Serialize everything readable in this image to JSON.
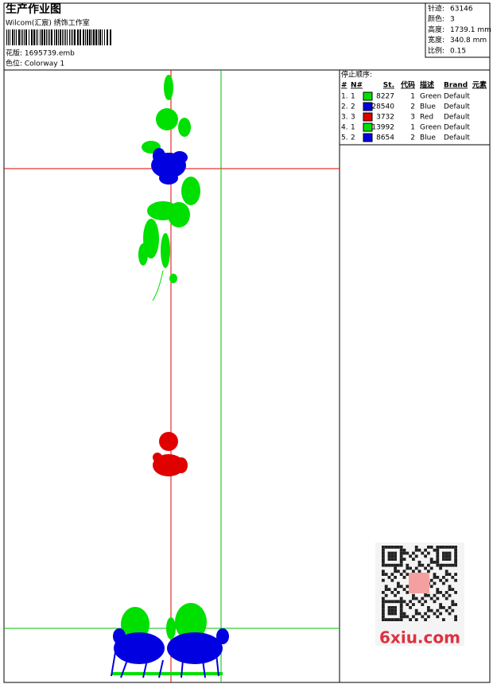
{
  "header": {
    "title": "生产作业图",
    "subtitle": "Wilcom(汇宸) 绣饰工作室",
    "design_file": "花版: 1695739.emb",
    "colorway": "色位: Colorway 1"
  },
  "info": [
    {
      "label": "针迹:",
      "value": "63146"
    },
    {
      "label": "颜色:",
      "value": "3"
    },
    {
      "label": "高度:",
      "value": "1739.1 mm"
    },
    {
      "label": "宽度:",
      "value": "340.8 mm"
    },
    {
      "label": "比例:",
      "value": "0.15"
    }
  ],
  "stop_sequence": {
    "title": "停止顺序:",
    "columns": [
      "#",
      "N#",
      "St.",
      "代码",
      "描述",
      "Brand",
      "元素"
    ],
    "rows": [
      {
        "index": "1.",
        "needle": "1",
        "color": "#00e000",
        "stitches": "8227",
        "code": "1",
        "description": "Green",
        "brand": "Default"
      },
      {
        "index": "2.",
        "needle": "2",
        "color": "#0000e0",
        "stitches": "28540",
        "code": "2",
        "description": "Blue",
        "brand": "Default"
      },
      {
        "index": "3.",
        "needle": "3",
        "color": "#e00000",
        "stitches": "3732",
        "code": "3",
        "description": "Red",
        "brand": "Default"
      },
      {
        "index": "4.",
        "needle": "1",
        "color": "#00e000",
        "stitches": "13992",
        "code": "1",
        "description": "Green",
        "brand": "Default"
      },
      {
        "index": "5.",
        "needle": "2",
        "color": "#0000e0",
        "stitches": "8654",
        "code": "2",
        "description": "Blue",
        "brand": "Default"
      }
    ]
  },
  "watermark": "6xiu.com"
}
